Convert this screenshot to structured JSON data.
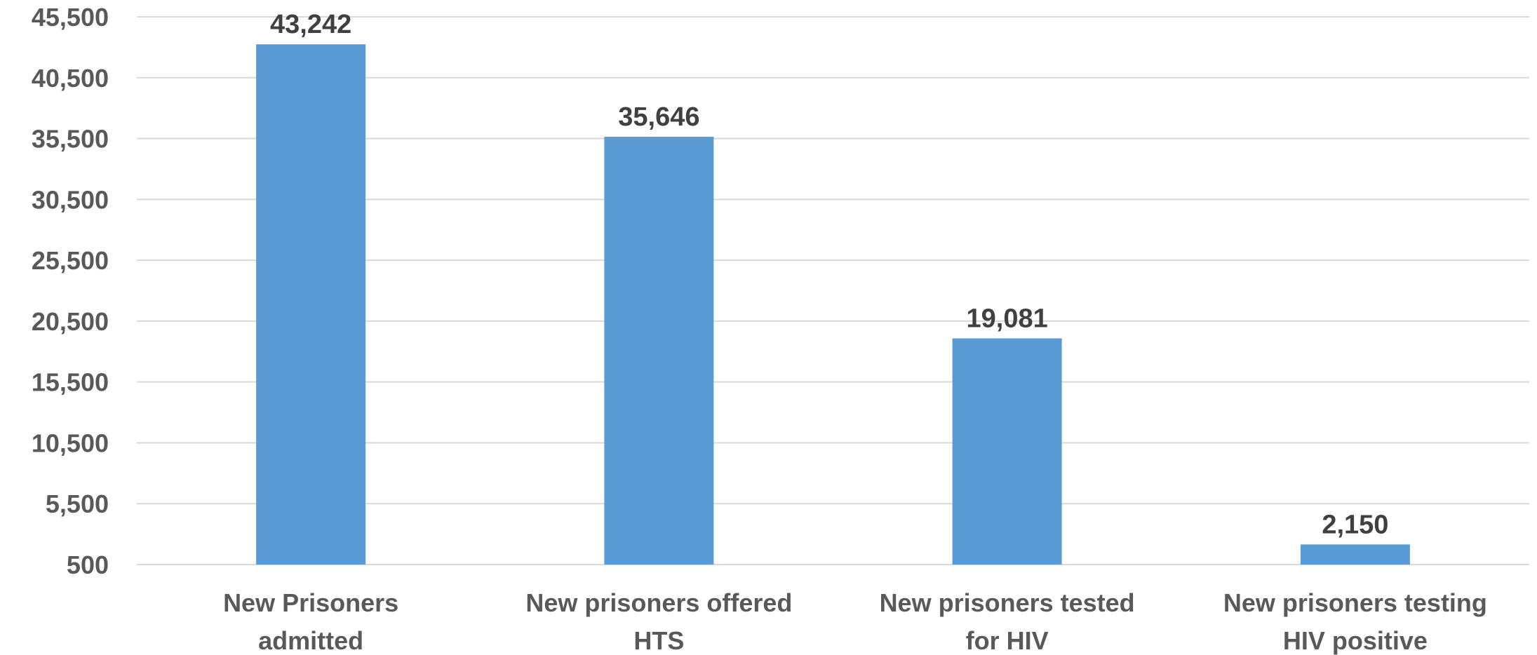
{
  "chart_data": {
    "type": "bar",
    "title": "",
    "xlabel": "",
    "ylabel": "",
    "categories": [
      [
        "New Prisoners",
        "admitted"
      ],
      [
        "New prisoners offered",
        "HTS"
      ],
      [
        "New prisoners tested",
        "for HIV"
      ],
      [
        "New prisoners testing",
        "HIV positive"
      ]
    ],
    "values": [
      43242,
      35646,
      19081,
      2150
    ],
    "value_labels": [
      "43,242",
      "35,646",
      "19,081",
      "2,150"
    ],
    "ylim": [
      500,
      45500
    ],
    "yticks": [
      500,
      5500,
      10500,
      15500,
      20500,
      25500,
      30500,
      35500,
      40500,
      45500
    ],
    "ytick_labels": [
      "500",
      "5,500",
      "10,500",
      "15,500",
      "20,500",
      "25,500",
      "30,500",
      "35,500",
      "40,500",
      "45,500"
    ],
    "grid": true,
    "legend": "none",
    "colors": {
      "bar": "#5B9BD5",
      "grid": "#D9D9D9",
      "tick_text": "#595959",
      "label_text": "#404040"
    }
  }
}
